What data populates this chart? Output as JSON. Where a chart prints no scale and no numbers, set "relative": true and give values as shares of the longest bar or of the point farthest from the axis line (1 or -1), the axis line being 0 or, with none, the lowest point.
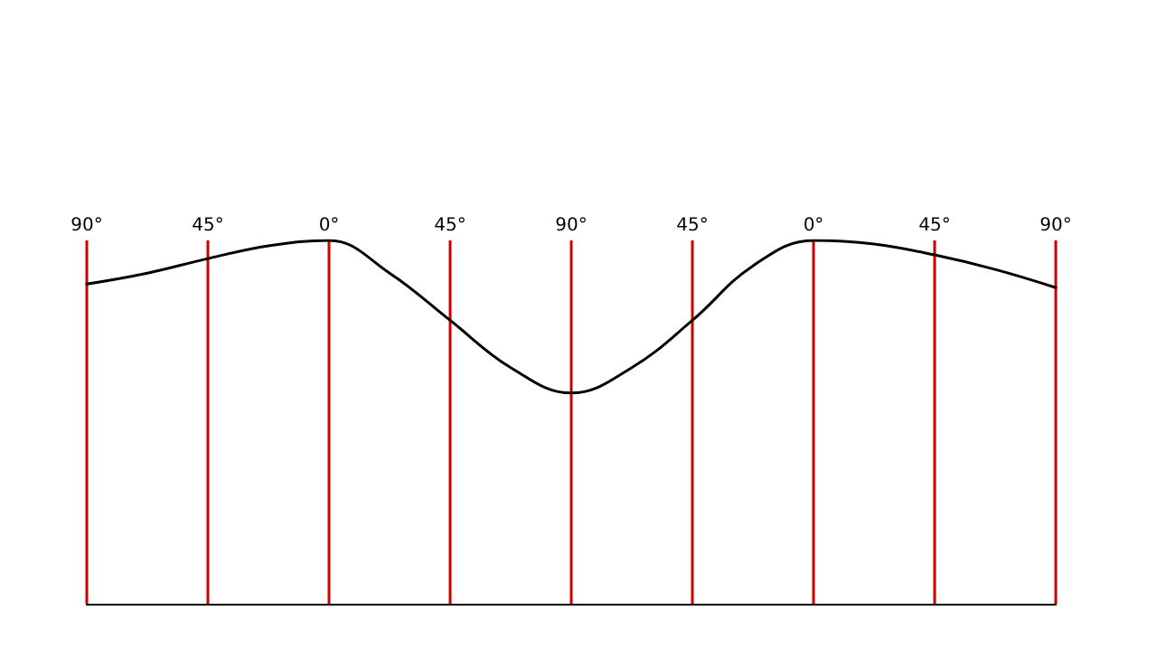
{
  "chart_data": {
    "type": "line",
    "relative": true,
    "categories": [
      "90°",
      null,
      "45°",
      null,
      "0°",
      null,
      "45°",
      null,
      "90°",
      null,
      "45°",
      null,
      "0°",
      null,
      "45°",
      null,
      "90°"
    ],
    "series": [
      {
        "color": "#000000",
        "values": [
          0.88,
          0.91,
          0.95,
          0.985,
          1,
          0.91,
          0.78,
          0.65,
          0.58,
          0.65,
          0.78,
          0.93,
          1,
          0.99,
          0.96,
          0.92,
          0.87
        ]
      }
    ],
    "grid": "x",
    "marker": "none",
    "line_style": "solid"
  }
}
